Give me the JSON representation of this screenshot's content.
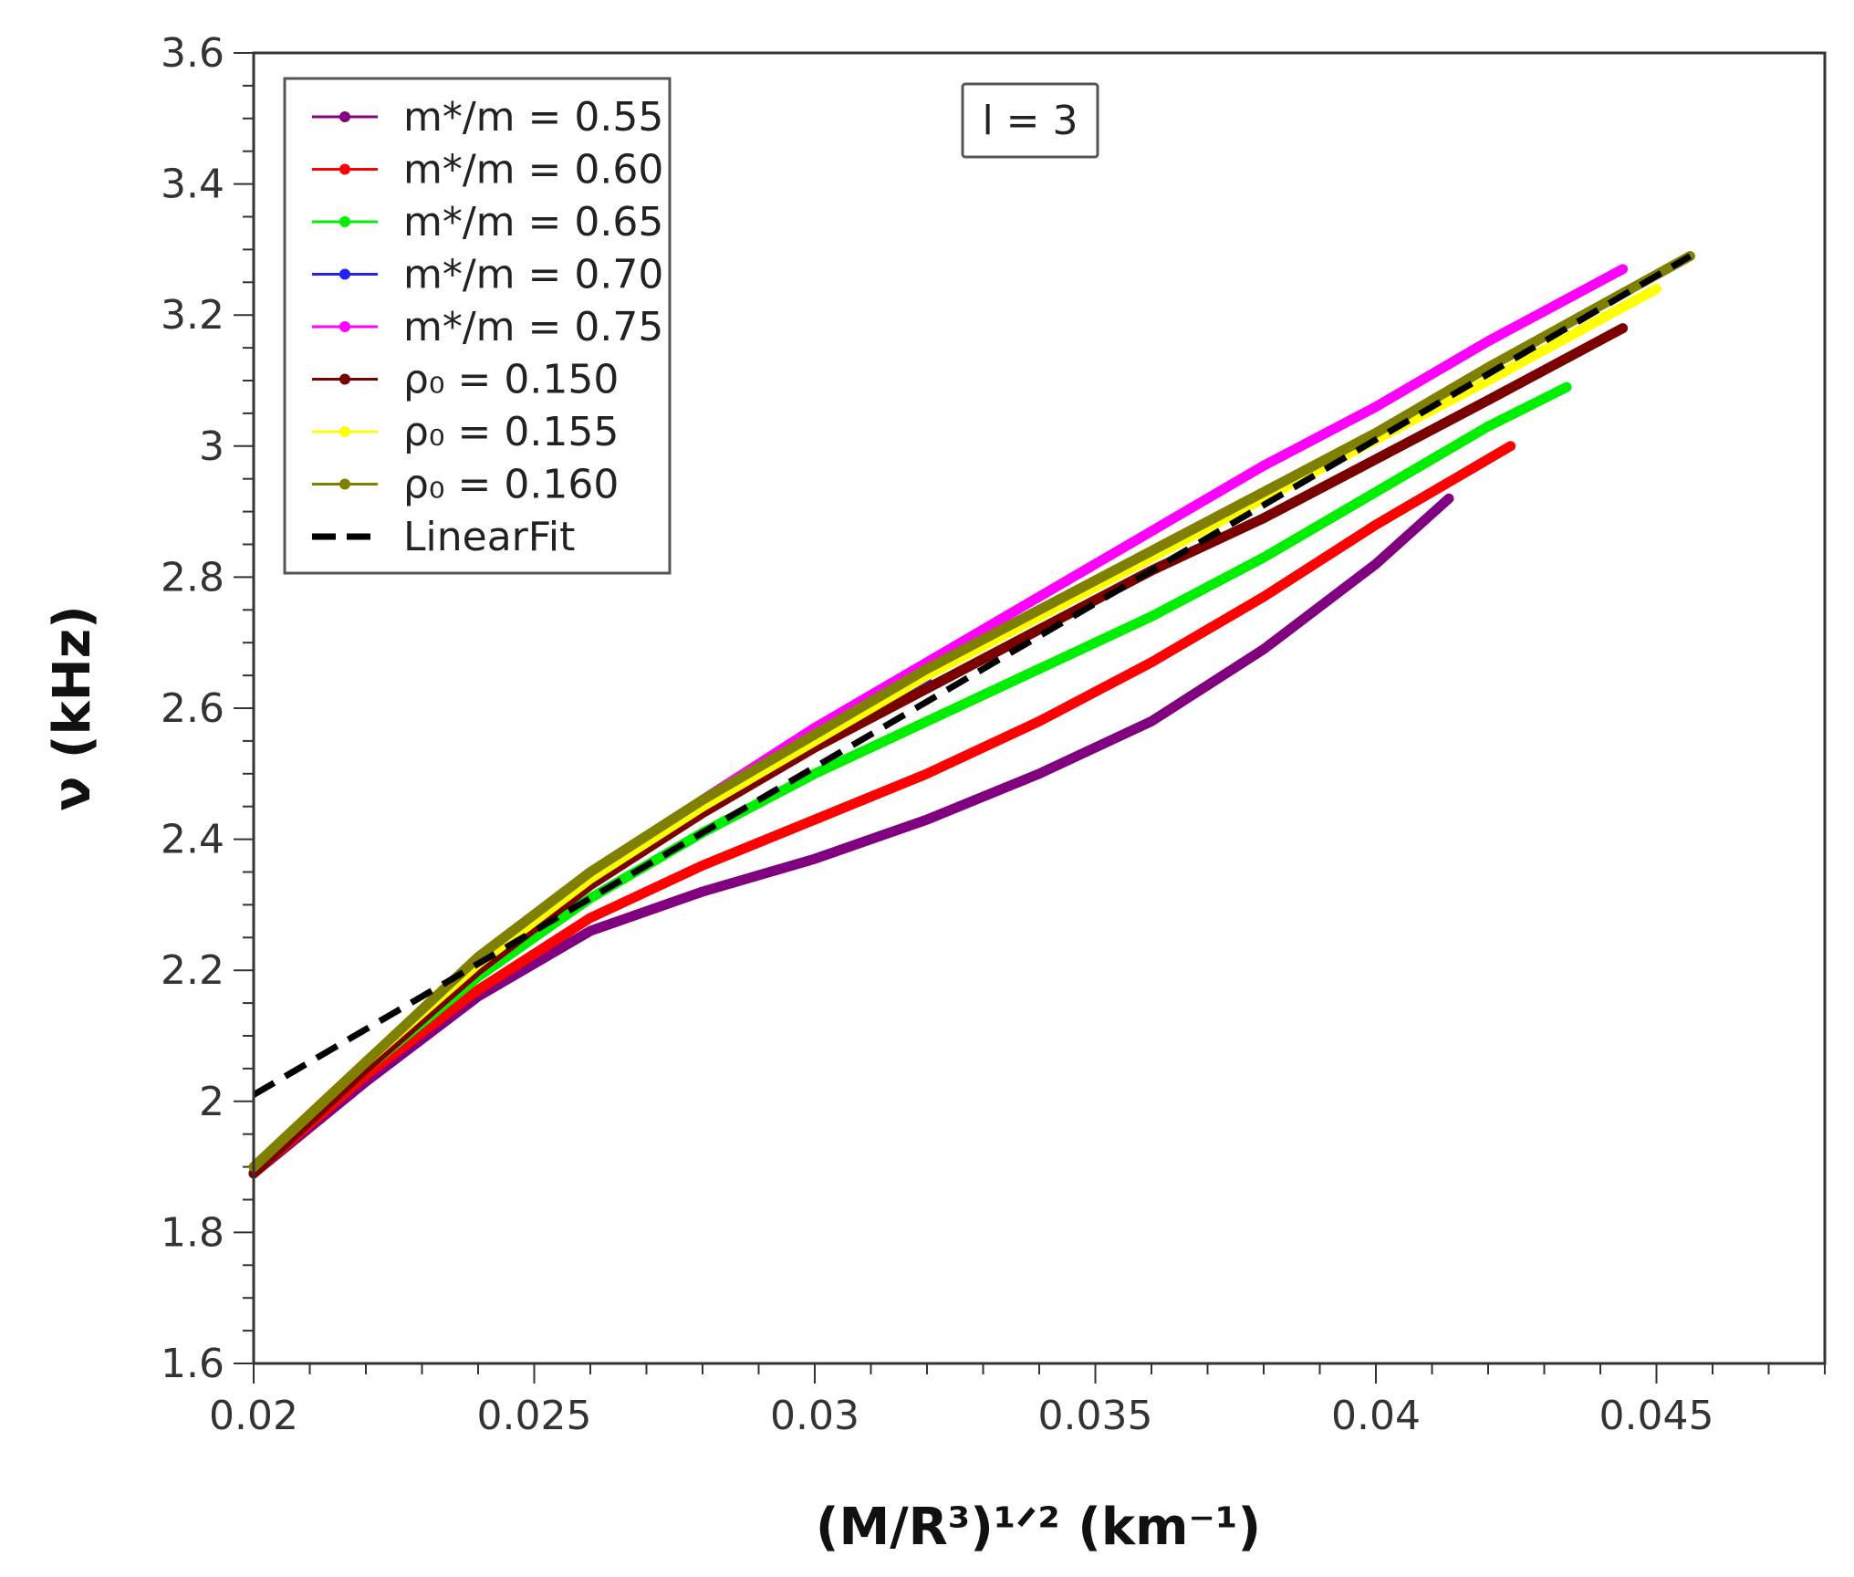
{
  "chart_data": {
    "type": "line",
    "title": "",
    "xlabel": "(M/R³)¹ᐟ² (km⁻¹)",
    "ylabel": "ν (kHz)",
    "xlim": [
      0.02,
      0.048
    ],
    "ylim": [
      1.6,
      3.6
    ],
    "x_ticks": [
      0.02,
      0.025,
      0.03,
      0.035,
      0.04,
      0.045
    ],
    "x_tick_labels": [
      "0.02",
      "0.025",
      "0.03",
      "0.035",
      "0.04",
      "0.045"
    ],
    "y_ticks": [
      1.6,
      1.8,
      2.0,
      2.2,
      2.4,
      2.6,
      2.8,
      3.0,
      3.2,
      3.4,
      3.6
    ],
    "y_tick_labels": [
      "1.6",
      "1.8",
      "2",
      "2.2",
      "2.4",
      "2.6",
      "2.8",
      "3",
      "3.2",
      "3.4",
      "3.6"
    ],
    "annotation": "l = 3",
    "legend_position": "top-left",
    "series": [
      {
        "name": "m*/m = 0.55",
        "color": "#800080",
        "x": [
          0.02,
          0.022,
          0.024,
          0.026,
          0.028,
          0.03,
          0.032,
          0.034,
          0.036,
          0.038,
          0.04,
          0.0413
        ],
        "y": [
          1.89,
          2.03,
          2.16,
          2.26,
          2.32,
          2.37,
          2.43,
          2.5,
          2.58,
          2.69,
          2.82,
          2.92
        ]
      },
      {
        "name": "m*/m = 0.60",
        "color": "#ff0000",
        "x": [
          0.02,
          0.022,
          0.024,
          0.026,
          0.028,
          0.03,
          0.032,
          0.034,
          0.036,
          0.038,
          0.04,
          0.0424
        ],
        "y": [
          1.89,
          2.04,
          2.17,
          2.28,
          2.36,
          2.43,
          2.5,
          2.58,
          2.67,
          2.77,
          2.88,
          3.0
        ]
      },
      {
        "name": "m*/m = 0.65",
        "color": "#00ee00",
        "x": [
          0.02,
          0.022,
          0.024,
          0.026,
          0.028,
          0.03,
          0.032,
          0.034,
          0.036,
          0.038,
          0.04,
          0.042,
          0.0434
        ],
        "y": [
          1.89,
          2.05,
          2.19,
          2.31,
          2.41,
          2.5,
          2.58,
          2.66,
          2.74,
          2.83,
          2.93,
          3.03,
          3.09
        ]
      },
      {
        "name": "m*/m = 0.70",
        "color": "#2222ee",
        "x": [
          0.02,
          0.022,
          0.024,
          0.026,
          0.028,
          0.03,
          0.032
        ],
        "y": [
          1.89,
          2.06,
          2.21,
          2.34,
          2.45,
          2.55,
          2.64
        ]
      },
      {
        "name": "m*/m = 0.75",
        "color": "#ff00ff",
        "x": [
          0.02,
          0.022,
          0.024,
          0.026,
          0.028,
          0.03,
          0.032,
          0.034,
          0.036,
          0.038,
          0.04,
          0.042,
          0.0444
        ],
        "y": [
          1.9,
          2.06,
          2.21,
          2.34,
          2.46,
          2.57,
          2.67,
          2.77,
          2.87,
          2.97,
          3.06,
          3.16,
          3.27
        ]
      },
      {
        "name": "ρ₀ = 0.150",
        "color": "#7a0000",
        "x": [
          0.02,
          0.022,
          0.024,
          0.026,
          0.028,
          0.03,
          0.032,
          0.034,
          0.036,
          0.038,
          0.04,
          0.042,
          0.0444
        ],
        "y": [
          1.89,
          2.05,
          2.2,
          2.33,
          2.44,
          2.54,
          2.63,
          2.72,
          2.81,
          2.89,
          2.98,
          3.07,
          3.18
        ]
      },
      {
        "name": "ρ₀ = 0.155",
        "color": "#ffff00",
        "x": [
          0.02,
          0.022,
          0.024,
          0.026,
          0.028,
          0.03,
          0.032,
          0.034,
          0.036,
          0.038,
          0.04,
          0.042,
          0.045
        ],
        "y": [
          1.9,
          2.06,
          2.21,
          2.34,
          2.45,
          2.55,
          2.65,
          2.74,
          2.83,
          2.92,
          3.01,
          3.1,
          3.24
        ]
      },
      {
        "name": "ρ₀ = 0.160",
        "color": "#808000",
        "x": [
          0.02,
          0.022,
          0.024,
          0.026,
          0.028,
          0.03,
          0.032,
          0.034,
          0.036,
          0.038,
          0.04,
          0.042,
          0.0456
        ],
        "y": [
          1.9,
          2.06,
          2.22,
          2.35,
          2.46,
          2.56,
          2.66,
          2.75,
          2.84,
          2.93,
          3.02,
          3.12,
          3.29
        ]
      },
      {
        "name": "LinearFit",
        "color": "#000000",
        "dashed": true,
        "x": [
          0.02,
          0.0456
        ],
        "y": [
          2.01,
          3.29
        ]
      }
    ]
  }
}
